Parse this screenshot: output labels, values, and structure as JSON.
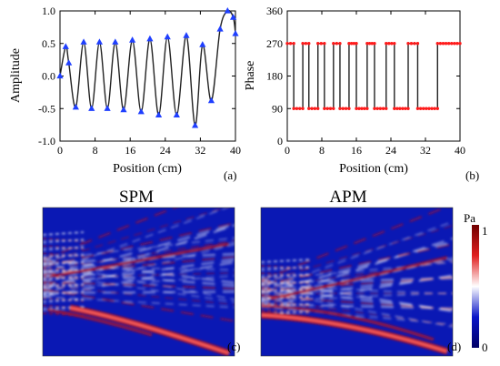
{
  "colors": {
    "trace": "#222222",
    "marker_blue": "#1f3fff",
    "marker_red": "#ff1a1a",
    "map_low": "#0a16a8",
    "map_mid": "#ffffff",
    "map_high": "#c81010"
  },
  "chart_data": [
    {
      "type": "line",
      "panel_label": "(a)",
      "xlabel": "Position (cm)",
      "ylabel": "Amplitude",
      "xlim": [
        0,
        40
      ],
      "ylim": [
        -1.0,
        1.0
      ],
      "xticks": [
        "0",
        "8",
        "16",
        "24",
        "32",
        "40"
      ],
      "yticks": [
        "-1.0",
        "-0.5",
        "0.0",
        "0.5",
        "1.0"
      ],
      "series": [
        {
          "x": [
            0,
            1.3,
            2.0,
            3.6,
            5.4,
            7.2,
            9.0,
            10.8,
            12.6,
            14.5,
            16.5,
            18.5,
            20.5,
            22.5,
            24.5,
            26.6,
            28.8,
            30.8,
            32.5,
            34.5,
            36.5,
            38.2,
            39.5,
            40
          ],
          "y": [
            0.0,
            0.45,
            0.2,
            -0.48,
            0.52,
            -0.5,
            0.52,
            -0.5,
            0.52,
            -0.52,
            0.55,
            -0.55,
            0.57,
            -0.6,
            0.6,
            -0.6,
            0.62,
            -0.76,
            0.48,
            -0.38,
            0.72,
            1.0,
            0.9,
            0.65
          ]
        }
      ]
    },
    {
      "type": "line",
      "panel_label": "(b)",
      "xlabel": "Position (cm)",
      "ylabel": "Phase",
      "xlim": [
        0,
        40
      ],
      "ylim": [
        0,
        360
      ],
      "xticks": [
        "0",
        "8",
        "16",
        "24",
        "32",
        "40"
      ],
      "yticks": [
        "0",
        "90",
        "180",
        "270",
        "360"
      ],
      "series": [
        {
          "x": [
            0,
            1.5,
            1.5,
            3.6,
            3.6,
            5.0,
            5.0,
            7.1,
            7.1,
            8.6,
            8.6,
            10.7,
            10.7,
            12.2,
            12.2,
            14.3,
            14.3,
            16.0,
            16.0,
            18.5,
            18.5,
            20.2,
            20.2,
            22.9,
            22.9,
            24.8,
            24.8,
            28.0,
            28.0,
            30.2,
            30.2,
            34.8,
            34.8,
            40
          ],
          "y": [
            270,
            270,
            90,
            90,
            270,
            270,
            90,
            90,
            270,
            270,
            90,
            90,
            270,
            270,
            90,
            90,
            270,
            270,
            90,
            90,
            270,
            270,
            90,
            90,
            270,
            270,
            90,
            90,
            270,
            270,
            90,
            90,
            270,
            270
          ]
        }
      ]
    },
    {
      "type": "heatmap",
      "title": "SPM",
      "panel_label": "(c)",
      "value_range": [
        0,
        1
      ]
    },
    {
      "type": "heatmap",
      "title": "APM",
      "panel_label": "(d)",
      "value_range": [
        0,
        1
      ],
      "colorbar_unit": "Pa",
      "colorbar_ticks": [
        "1",
        "0"
      ]
    }
  ]
}
